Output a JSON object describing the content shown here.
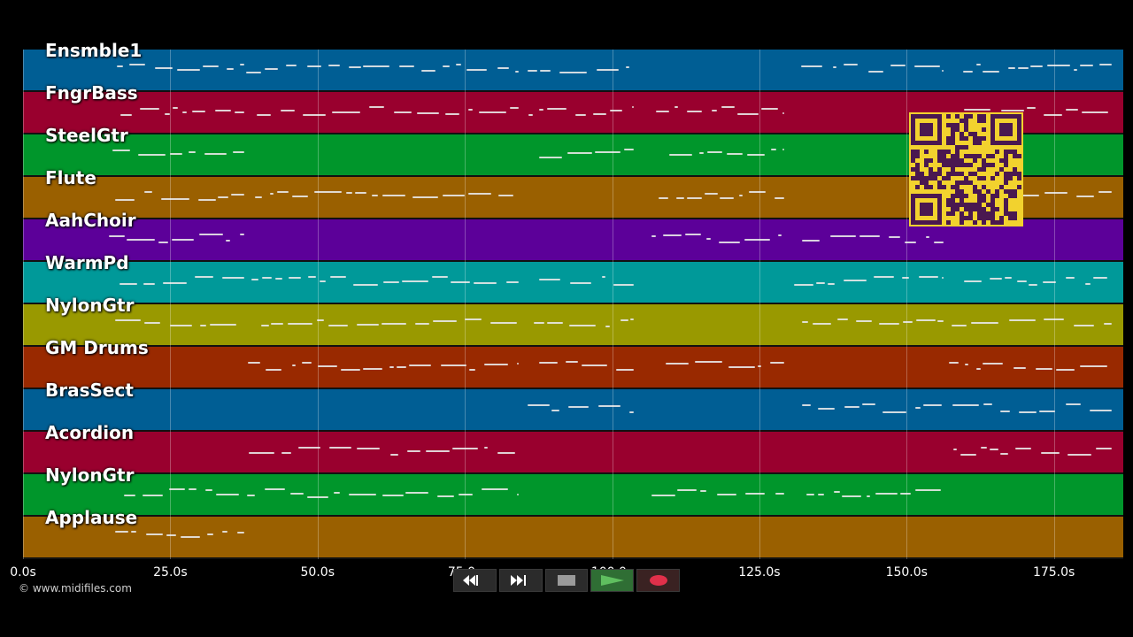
{
  "tracks": [
    {
      "name": "Ensmble1",
      "color": "#005e94"
    },
    {
      "name": "FngrBass",
      "color": "#99002e"
    },
    {
      "name": "SteelGtr",
      "color": "#00962b"
    },
    {
      "name": "Flute",
      "color": "#9a6000"
    },
    {
      "name": "AahChoir",
      "color": "#5c0099"
    },
    {
      "name": "WarmPd",
      "color": "#009999"
    },
    {
      "name": "NylonGtr",
      "color": "#999900"
    },
    {
      "name": "GM Drums",
      "color": "#992900"
    },
    {
      "name": "BrasSect",
      "color": "#005e94"
    },
    {
      "name": "Acordion",
      "color": "#99002e"
    },
    {
      "name": "NylonGtr",
      "color": "#00962b"
    },
    {
      "name": "Applause",
      "color": "#9a6000"
    }
  ],
  "timeline": {
    "ticks": [
      "0.0s",
      "25.0s",
      "50.0s",
      "75.0s",
      "100.0s",
      "125.0s",
      "150.0s",
      "175.0s"
    ]
  },
  "transport": {
    "rewind": "rewind-icon",
    "fast_forward": "fast-forward-icon",
    "stop": "stop-icon",
    "play": "play-icon",
    "record": "record-icon",
    "play_color": "#5fbf5f",
    "record_color": "#e0304a"
  },
  "footer": {
    "copyright": "© www.midifiles.com"
  }
}
